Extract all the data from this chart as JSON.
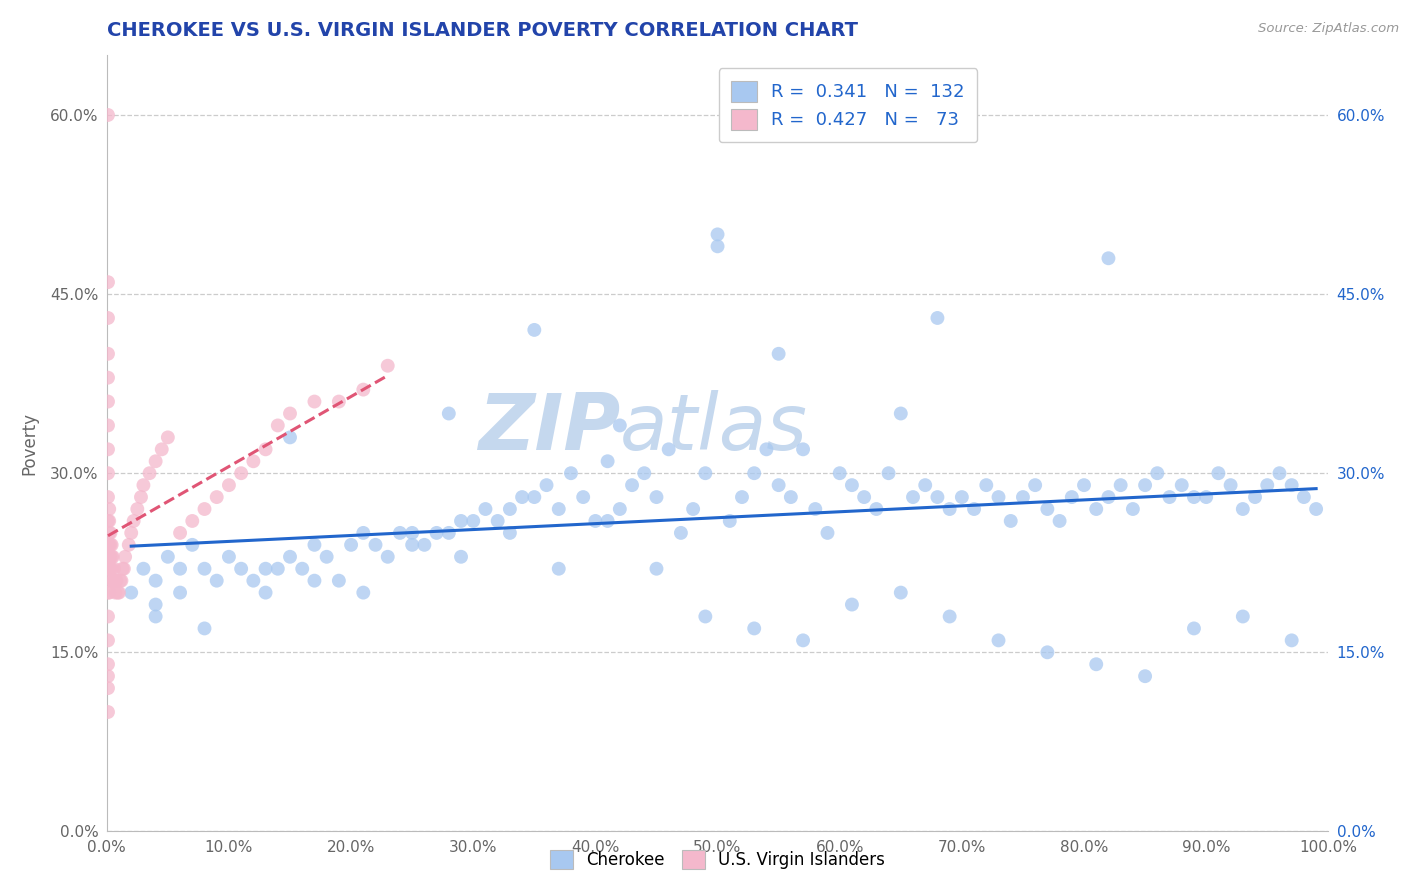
{
  "title": "CHEROKEE VS U.S. VIRGIN ISLANDER POVERTY CORRELATION CHART",
  "source": "Source: ZipAtlas.com",
  "ylabel": "Poverty",
  "xlim": [
    0.0,
    1.0
  ],
  "ylim": [
    0.0,
    0.65
  ],
  "xticks": [
    0.0,
    0.1,
    0.2,
    0.3,
    0.4,
    0.5,
    0.6,
    0.7,
    0.8,
    0.9,
    1.0
  ],
  "xticklabels": [
    "0.0%",
    "10.0%",
    "20.0%",
    "30.0%",
    "40.0%",
    "50.0%",
    "60.0%",
    "70.0%",
    "80.0%",
    "90.0%",
    "100.0%"
  ],
  "yticks": [
    0.0,
    0.15,
    0.3,
    0.45,
    0.6
  ],
  "yticklabels": [
    "0.0%",
    "15.0%",
    "30.0%",
    "45.0%",
    "60.0%"
  ],
  "cherokee_R": "0.341",
  "cherokee_N": "132",
  "virgin_R": "0.427",
  "virgin_N": "73",
  "cherokee_color": "#a8c8f0",
  "virgin_color": "#f4b8cc",
  "cherokee_line_color": "#2266cc",
  "virgin_line_color": "#e05575",
  "title_color": "#2244aa",
  "source_color": "#999999",
  "grid_color": "#cccccc",
  "legend_label_cherokee": "Cherokee",
  "legend_label_virgin": "U.S. Virgin Islanders",
  "cherokee_x": [
    0.02,
    0.03,
    0.04,
    0.04,
    0.05,
    0.06,
    0.06,
    0.07,
    0.08,
    0.09,
    0.1,
    0.11,
    0.12,
    0.13,
    0.14,
    0.15,
    0.16,
    0.17,
    0.18,
    0.19,
    0.2,
    0.21,
    0.22,
    0.23,
    0.24,
    0.25,
    0.26,
    0.27,
    0.28,
    0.29,
    0.3,
    0.31,
    0.32,
    0.33,
    0.34,
    0.35,
    0.36,
    0.37,
    0.38,
    0.39,
    0.4,
    0.41,
    0.42,
    0.43,
    0.44,
    0.45,
    0.46,
    0.47,
    0.48,
    0.49,
    0.5,
    0.51,
    0.52,
    0.53,
    0.54,
    0.55,
    0.56,
    0.57,
    0.58,
    0.59,
    0.6,
    0.61,
    0.62,
    0.63,
    0.64,
    0.65,
    0.66,
    0.67,
    0.68,
    0.69,
    0.7,
    0.71,
    0.72,
    0.73,
    0.74,
    0.75,
    0.76,
    0.77,
    0.78,
    0.79,
    0.8,
    0.81,
    0.82,
    0.83,
    0.84,
    0.85,
    0.86,
    0.87,
    0.88,
    0.89,
    0.9,
    0.91,
    0.92,
    0.93,
    0.94,
    0.95,
    0.96,
    0.97,
    0.98,
    0.99,
    0.04,
    0.08,
    0.13,
    0.17,
    0.21,
    0.25,
    0.29,
    0.33,
    0.37,
    0.41,
    0.45,
    0.49,
    0.53,
    0.57,
    0.61,
    0.65,
    0.69,
    0.73,
    0.77,
    0.81,
    0.85,
    0.89,
    0.93,
    0.97,
    0.15,
    0.28,
    0.42,
    0.55,
    0.68,
    0.82,
    0.5,
    0.35
  ],
  "cherokee_y": [
    0.2,
    0.22,
    0.21,
    0.18,
    0.23,
    0.22,
    0.2,
    0.24,
    0.22,
    0.21,
    0.23,
    0.22,
    0.21,
    0.2,
    0.22,
    0.23,
    0.22,
    0.24,
    0.23,
    0.21,
    0.24,
    0.25,
    0.24,
    0.23,
    0.25,
    0.25,
    0.24,
    0.25,
    0.25,
    0.26,
    0.26,
    0.27,
    0.26,
    0.27,
    0.28,
    0.28,
    0.29,
    0.27,
    0.3,
    0.28,
    0.26,
    0.31,
    0.27,
    0.29,
    0.3,
    0.28,
    0.32,
    0.25,
    0.27,
    0.3,
    0.49,
    0.26,
    0.28,
    0.3,
    0.32,
    0.29,
    0.28,
    0.32,
    0.27,
    0.25,
    0.3,
    0.29,
    0.28,
    0.27,
    0.3,
    0.35,
    0.28,
    0.29,
    0.28,
    0.27,
    0.28,
    0.27,
    0.29,
    0.28,
    0.26,
    0.28,
    0.29,
    0.27,
    0.26,
    0.28,
    0.29,
    0.27,
    0.28,
    0.29,
    0.27,
    0.29,
    0.3,
    0.28,
    0.29,
    0.28,
    0.28,
    0.3,
    0.29,
    0.27,
    0.28,
    0.29,
    0.3,
    0.29,
    0.28,
    0.27,
    0.19,
    0.17,
    0.22,
    0.21,
    0.2,
    0.24,
    0.23,
    0.25,
    0.22,
    0.26,
    0.22,
    0.18,
    0.17,
    0.16,
    0.19,
    0.2,
    0.18,
    0.16,
    0.15,
    0.14,
    0.13,
    0.17,
    0.18,
    0.16,
    0.33,
    0.35,
    0.34,
    0.4,
    0.43,
    0.48,
    0.5,
    0.42
  ],
  "virgin_x": [
    0.001,
    0.001,
    0.001,
    0.001,
    0.001,
    0.001,
    0.001,
    0.001,
    0.001,
    0.001,
    0.001,
    0.001,
    0.001,
    0.001,
    0.001,
    0.001,
    0.001,
    0.001,
    0.001,
    0.001,
    0.002,
    0.002,
    0.002,
    0.002,
    0.002,
    0.002,
    0.002,
    0.002,
    0.003,
    0.003,
    0.003,
    0.003,
    0.004,
    0.004,
    0.004,
    0.005,
    0.005,
    0.006,
    0.006,
    0.007,
    0.007,
    0.008,
    0.009,
    0.01,
    0.011,
    0.012,
    0.013,
    0.014,
    0.015,
    0.018,
    0.02,
    0.022,
    0.025,
    0.028,
    0.03,
    0.035,
    0.04,
    0.045,
    0.05,
    0.06,
    0.07,
    0.08,
    0.09,
    0.1,
    0.11,
    0.12,
    0.13,
    0.14,
    0.15,
    0.17,
    0.19,
    0.21,
    0.23
  ],
  "virgin_y": [
    0.6,
    0.46,
    0.43,
    0.4,
    0.38,
    0.36,
    0.34,
    0.32,
    0.3,
    0.28,
    0.26,
    0.24,
    0.22,
    0.2,
    0.18,
    0.16,
    0.14,
    0.13,
    0.12,
    0.1,
    0.27,
    0.26,
    0.25,
    0.24,
    0.23,
    0.22,
    0.21,
    0.2,
    0.25,
    0.24,
    0.23,
    0.22,
    0.24,
    0.23,
    0.22,
    0.23,
    0.21,
    0.22,
    0.21,
    0.21,
    0.2,
    0.21,
    0.2,
    0.2,
    0.21,
    0.21,
    0.22,
    0.22,
    0.23,
    0.24,
    0.25,
    0.26,
    0.27,
    0.28,
    0.29,
    0.3,
    0.31,
    0.32,
    0.33,
    0.25,
    0.26,
    0.27,
    0.28,
    0.29,
    0.3,
    0.31,
    0.32,
    0.34,
    0.35,
    0.36,
    0.36,
    0.37,
    0.39
  ]
}
